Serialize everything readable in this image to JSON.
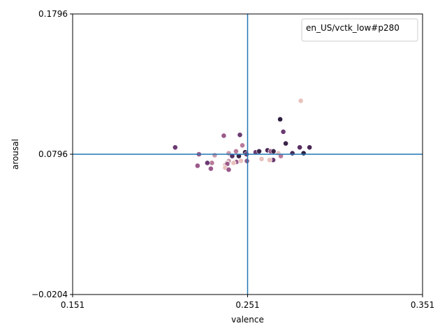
{
  "chart_data": {
    "type": "scatter",
    "xlabel": "valence",
    "ylabel": "arousal",
    "xlim": [
      0.151,
      0.351
    ],
    "ylim": [
      -0.0204,
      0.1796
    ],
    "x_ticks": [
      0.151,
      0.251,
      0.351
    ],
    "y_ticks": [
      -0.0204,
      0.0796,
      0.1796
    ],
    "x_tick_labels": [
      "0.151",
      "0.251",
      "0.351"
    ],
    "y_tick_labels": [
      "−0.0204",
      "0.0796",
      "0.1796"
    ],
    "reference_lines": {
      "x": 0.251,
      "y": 0.0796,
      "color": "#1f77b4"
    },
    "legend": {
      "label": "en_US/vctk_low#p280",
      "position": "top-right"
    },
    "grid": false,
    "points": [
      {
        "x": 0.2696,
        "y": 0.1045,
        "color": "#2d1e3e"
      },
      {
        "x": 0.2814,
        "y": 0.1177,
        "color": "#e8c1bd"
      },
      {
        "x": 0.2714,
        "y": 0.0956,
        "color": "#6b3a72"
      },
      {
        "x": 0.2728,
        "y": 0.0873,
        "color": "#3b2348"
      },
      {
        "x": 0.2808,
        "y": 0.0845,
        "color": "#5a2f63"
      },
      {
        "x": 0.2766,
        "y": 0.0803,
        "color": "#4a2856"
      },
      {
        "x": 0.2096,
        "y": 0.0845,
        "color": "#6b3a72"
      },
      {
        "x": 0.2374,
        "y": 0.0928,
        "color": "#9a5a8a"
      },
      {
        "x": 0.2466,
        "y": 0.0934,
        "color": "#6b3a72"
      },
      {
        "x": 0.2232,
        "y": 0.0796,
        "color": "#9a5a8a"
      },
      {
        "x": 0.2322,
        "y": 0.0789,
        "color": "#c99aab"
      },
      {
        "x": 0.2402,
        "y": 0.0803,
        "color": "#c99aab"
      },
      {
        "x": 0.2422,
        "y": 0.0783,
        "color": "#5a2f63"
      },
      {
        "x": 0.2444,
        "y": 0.0817,
        "color": "#b87a9a"
      },
      {
        "x": 0.246,
        "y": 0.0783,
        "color": "#3b2348"
      },
      {
        "x": 0.2496,
        "y": 0.081,
        "color": "#3b2348"
      },
      {
        "x": 0.2504,
        "y": 0.0796,
        "color": "#6b3a72"
      },
      {
        "x": 0.2556,
        "y": 0.081,
        "color": "#6b3a72"
      },
      {
        "x": 0.2576,
        "y": 0.0817,
        "color": "#3b2348"
      },
      {
        "x": 0.2624,
        "y": 0.0824,
        "color": "#4a2856"
      },
      {
        "x": 0.2642,
        "y": 0.0817,
        "color": "#9a5a8a"
      },
      {
        "x": 0.2658,
        "y": 0.0817,
        "color": "#3b2348"
      },
      {
        "x": 0.2686,
        "y": 0.0803,
        "color": "#e8c1bd"
      },
      {
        "x": 0.27,
        "y": 0.0783,
        "color": "#b87a9a"
      },
      {
        "x": 0.2656,
        "y": 0.0755,
        "color": "#6b3a72"
      },
      {
        "x": 0.2636,
        "y": 0.0755,
        "color": "#e8c1bd"
      },
      {
        "x": 0.259,
        "y": 0.0762,
        "color": "#e8c1bd"
      },
      {
        "x": 0.2506,
        "y": 0.0748,
        "color": "#8a5a8a"
      },
      {
        "x": 0.2446,
        "y": 0.0741,
        "color": "#9a5a8a"
      },
      {
        "x": 0.2402,
        "y": 0.0748,
        "color": "#c99aab"
      },
      {
        "x": 0.2392,
        "y": 0.0734,
        "color": "#e8c1bd"
      },
      {
        "x": 0.243,
        "y": 0.0734,
        "color": "#e8c1bd"
      },
      {
        "x": 0.2382,
        "y": 0.072,
        "color": "#e8c1bd"
      },
      {
        "x": 0.2394,
        "y": 0.0727,
        "color": "#9a5a8a"
      },
      {
        "x": 0.2382,
        "y": 0.07,
        "color": "#e8c1bd"
      },
      {
        "x": 0.2402,
        "y": 0.0686,
        "color": "#9a5a8a"
      },
      {
        "x": 0.2306,
        "y": 0.0734,
        "color": "#b87a9a"
      },
      {
        "x": 0.228,
        "y": 0.0734,
        "color": "#6b3a72"
      },
      {
        "x": 0.23,
        "y": 0.0693,
        "color": "#9a5a8a"
      },
      {
        "x": 0.2224,
        "y": 0.0714,
        "color": "#9a5a8a"
      },
      {
        "x": 0.2472,
        "y": 0.0749,
        "color": "#e8c1bd"
      },
      {
        "x": 0.248,
        "y": 0.0859,
        "color": "#b87a9a"
      },
      {
        "x": 0.2864,
        "y": 0.0845,
        "color": "#4a2856"
      },
      {
        "x": 0.283,
        "y": 0.0803,
        "color": "#2d1e3e"
      }
    ]
  }
}
